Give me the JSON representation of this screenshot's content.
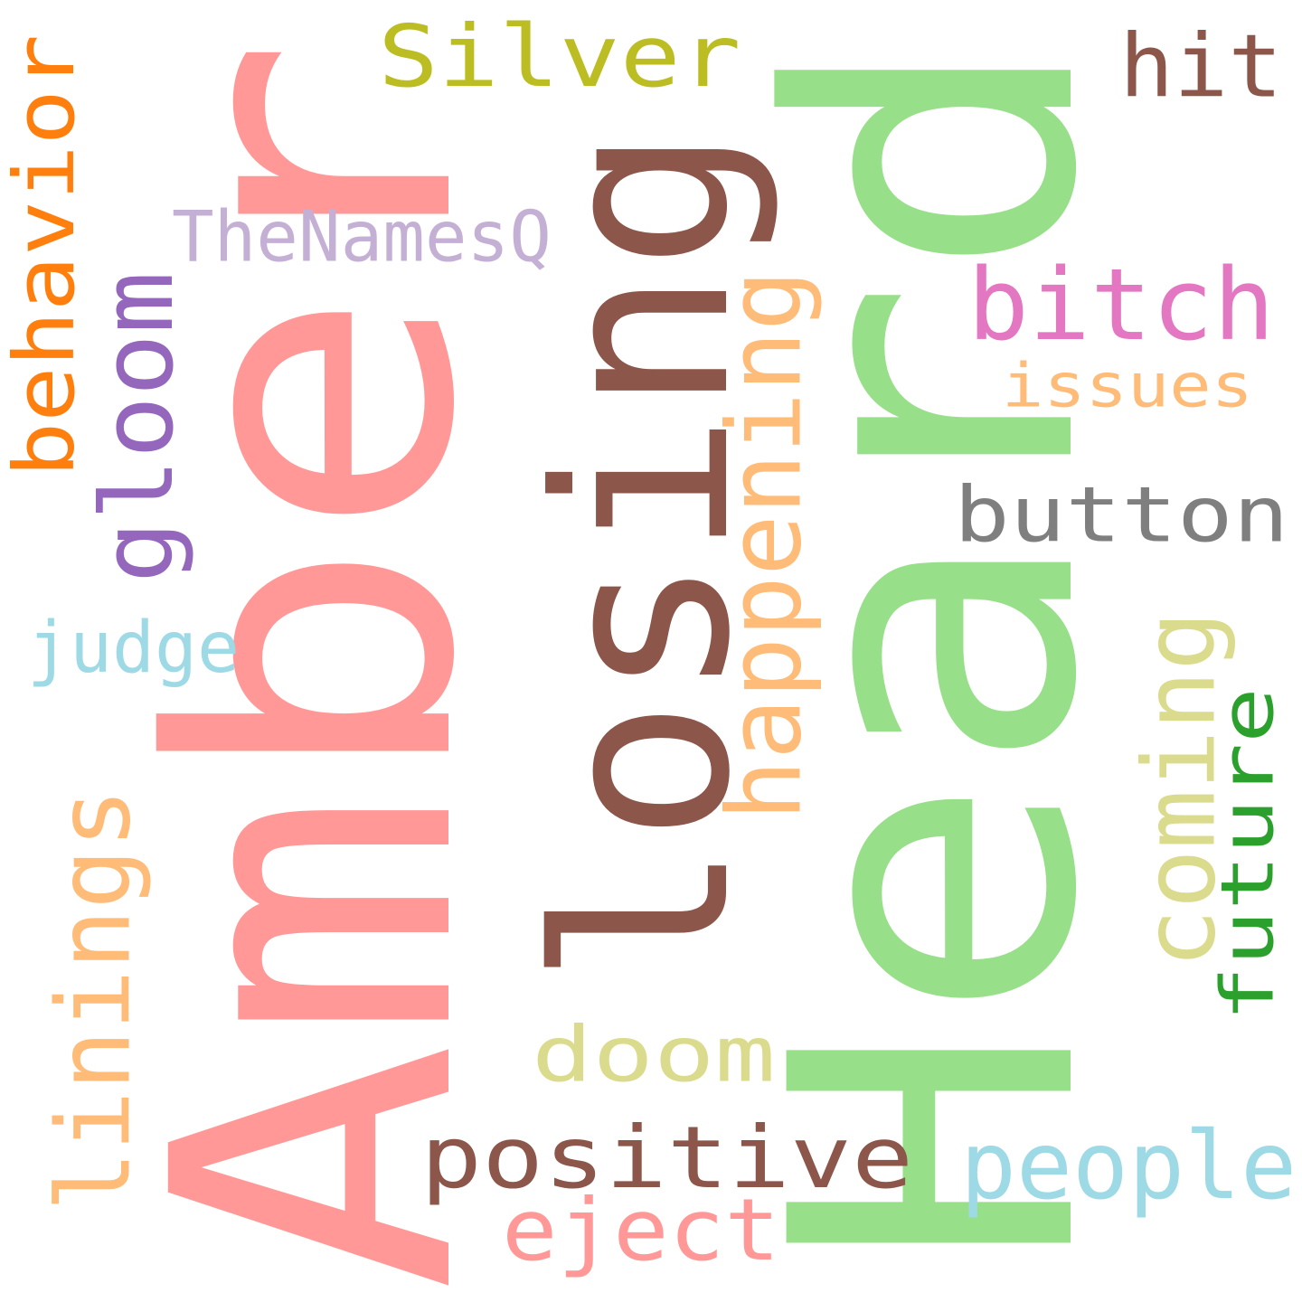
{
  "words": [
    {
      "id": "amber",
      "text": "Amber",
      "color": "#ff9896"
    },
    {
      "id": "heard",
      "text": "Heard",
      "color": "#98df8a"
    },
    {
      "id": "losing",
      "text": "losing",
      "color": "#8c564b"
    },
    {
      "id": "silver",
      "text": "Silver",
      "color": "#bcbd22"
    },
    {
      "id": "hit",
      "text": "hit",
      "color": "#8c564b"
    },
    {
      "id": "thenamesq",
      "text": "TheNamesQ",
      "color": "#c5b0d5"
    },
    {
      "id": "behavior",
      "text": "behavior",
      "color": "#ff7f0e"
    },
    {
      "id": "gloom",
      "text": "gloom",
      "color": "#9467bd"
    },
    {
      "id": "happening",
      "text": "happening",
      "color": "#ffbb78"
    },
    {
      "id": "bitch",
      "text": "bitch",
      "color": "#e377c2"
    },
    {
      "id": "issues",
      "text": "issues",
      "color": "#ffbb78"
    },
    {
      "id": "button",
      "text": "button",
      "color": "#7f7f7f"
    },
    {
      "id": "judge",
      "text": "judge",
      "color": "#9edae5"
    },
    {
      "id": "coming",
      "text": "coming",
      "color": "#dbdb8d"
    },
    {
      "id": "future",
      "text": "future",
      "color": "#2ca02c"
    },
    {
      "id": "linings",
      "text": "linings",
      "color": "#ffbb78"
    },
    {
      "id": "doom",
      "text": "doom",
      "color": "#dbdb8d"
    },
    {
      "id": "positive",
      "text": "positive",
      "color": "#8c564b"
    },
    {
      "id": "people",
      "text": "people",
      "color": "#9edae5"
    },
    {
      "id": "eject",
      "text": "eject",
      "color": "#ff9896"
    }
  ]
}
